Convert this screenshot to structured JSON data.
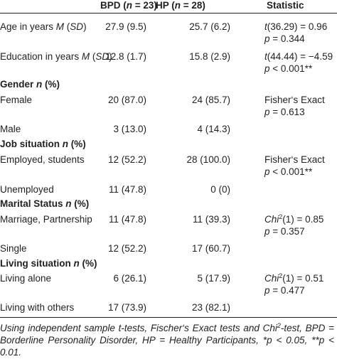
{
  "header": {
    "bpd": {
      "pre": "BPD (",
      "n": "n",
      "post": " = 23)"
    },
    "hp": {
      "pre": "HP (",
      "n": "n",
      "post": " = 28)"
    },
    "statistic": "Statistic"
  },
  "rows": {
    "age": {
      "label": {
        "pre": "Age in years ",
        "m": "M",
        "mid": " (",
        "sd": "SD",
        "post": ")"
      },
      "bpd": "27.9 (9.5)",
      "hp": "25.7 (6.2)",
      "stat1": {
        "t": "t",
        "rest": "(36.29) = 0.96"
      },
      "stat2": {
        "p": "p",
        "rest": " = 0.344"
      }
    },
    "education": {
      "label": {
        "pre": "Education in years ",
        "m": "M",
        "mid": " (",
        "sd": "SD",
        "post": ")"
      },
      "bpd": "12.8 (1.7)",
      "hp": "15.8 (2.9)",
      "stat1": {
        "t": "t",
        "rest": "(44.44) = −4.59"
      },
      "stat2": {
        "p": "p",
        "rest": " < 0.001**"
      }
    },
    "gender_head": {
      "pre": "Gender ",
      "n": "n",
      "post": " (%)"
    },
    "female": {
      "label": "Female",
      "bpd": "20 (87.0)",
      "hp": "24 (85.7)",
      "stat1": "Fisher‘s Exact",
      "stat2": {
        "p": "p",
        "rest": " = 0.613"
      }
    },
    "male": {
      "label": "Male",
      "bpd": "3 (13.0)",
      "hp": "4 (14.3)"
    },
    "job_head": {
      "pre": "Job situation ",
      "n": "n",
      "post": " (%)"
    },
    "employed": {
      "label": "Employed, students",
      "bpd": "12 (52.2)",
      "hp": "28 (100.0)",
      "stat1": "Fisher‘s Exact",
      "stat2": {
        "p": "p",
        "rest": " < 0.001**"
      }
    },
    "unemployed": {
      "label": "Unemployed",
      "bpd": "11 (47.8)",
      "hp": "0 (0)"
    },
    "marital_head": {
      "pre": "Marital Status ",
      "n": "n",
      "post": " (%)"
    },
    "marriage": {
      "label": "Marriage, Partnership",
      "bpd": "11 (47.8)",
      "hp": "11 (39.3)",
      "stat1": {
        "chi": "Chi",
        "sup": "2",
        "rest": "(1) = 0.85"
      },
      "stat2": {
        "p": "p",
        "rest": " = 0.357"
      }
    },
    "single": {
      "label": "Single",
      "bpd": "12 (52.2)",
      "hp": "17 (60.7)"
    },
    "living_head": {
      "pre": "Living situation ",
      "n": "n",
      "post": " (%)"
    },
    "alone": {
      "label": "Living alone",
      "bpd": "6 (26.1)",
      "hp": "5 (17.9)",
      "stat1": {
        "chi": "Chi",
        "sup": "2",
        "rest": "(1) = 0.51"
      },
      "stat2": {
        "p": "p",
        "rest": " = 0.477"
      }
    },
    "others": {
      "label": "Living with others",
      "bpd": "17 (73.9)",
      "hp": "23 (82.1)"
    }
  },
  "note": {
    "a": "Using independent sample t-tests, Fischer‘s Exact tests and Chi",
    "sup": "2",
    "b": "-test, BPD = Borderline Personality Disorder, HP = Healthy Participants, *p < 0.05, **p < 0.01."
  }
}
